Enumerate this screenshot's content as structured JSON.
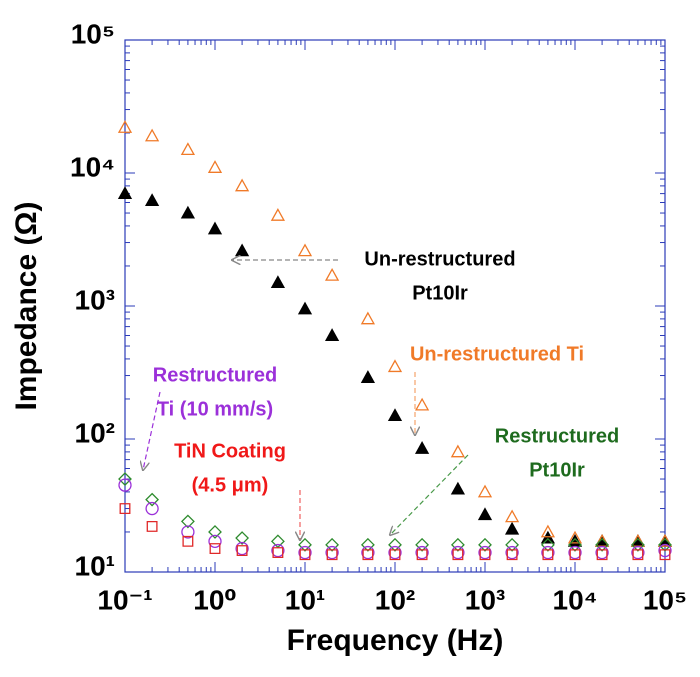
{
  "chart_data": {
    "type": "scatter",
    "x_label": "Frequency (Hz)",
    "y_label": "Impedance (Ω)",
    "log_x": true,
    "log_y": true,
    "xlim": [
      0.1,
      100000
    ],
    "ylim": [
      10,
      100000
    ],
    "xticks": [
      {
        "value": 0.1,
        "label": "10⁻¹"
      },
      {
        "value": 1,
        "label": "10⁰"
      },
      {
        "value": 10,
        "label": "10¹"
      },
      {
        "value": 100,
        "label": "10²"
      },
      {
        "value": 1000,
        "label": "10³"
      },
      {
        "value": 10000,
        "label": "10⁴"
      },
      {
        "value": 100000,
        "label": "10⁵"
      }
    ],
    "yticks": [
      {
        "value": 10,
        "label": "10¹"
      },
      {
        "value": 100,
        "label": "10²"
      },
      {
        "value": 1000,
        "label": "10³"
      },
      {
        "value": 10000,
        "label": "10⁴"
      },
      {
        "value": 100000,
        "label": "10⁵"
      }
    ],
    "x": [
      0.1,
      0.2,
      0.5,
      1,
      2,
      5,
      10,
      20,
      50,
      100,
      200,
      500,
      1000,
      2000,
      5000,
      10000,
      20000,
      50000,
      100000
    ],
    "series": [
      {
        "name": "Un-restructured Pt10Ir",
        "color": "#000000",
        "marker": "triangle-filled",
        "values": [
          7000,
          6200,
          5000,
          3800,
          2600,
          1500,
          950,
          600,
          290,
          150,
          85,
          42,
          27,
          21,
          18,
          17,
          17,
          17,
          17
        ]
      },
      {
        "name": "Un-restructured Ti",
        "color": "#f07a28",
        "marker": "triangle",
        "values": [
          22000,
          19000,
          15000,
          11000,
          8000,
          4800,
          2600,
          1700,
          800,
          350,
          180,
          80,
          40,
          26,
          20,
          18,
          17,
          17,
          17
        ]
      },
      {
        "name": "Restructured Pt10Ir",
        "color": "#2e8b2e",
        "marker": "diamond",
        "values": [
          50,
          35,
          24,
          20,
          18,
          17,
          16,
          16,
          16,
          16,
          16,
          16,
          16,
          16,
          16,
          16,
          16,
          16,
          16
        ]
      },
      {
        "name": "Restructured Ti (10 mm/s)",
        "color": "#9b30d9",
        "marker": "circle",
        "values": [
          45,
          30,
          20,
          17,
          15,
          14.5,
          14,
          14,
          14,
          14,
          14,
          14,
          14,
          14,
          14,
          14,
          14,
          14,
          14.5
        ]
      },
      {
        "name": "TiN Coating (4.5 μm)",
        "color": "#e02828",
        "marker": "square",
        "values": [
          30,
          22,
          17,
          15,
          14.5,
          14,
          13.5,
          13.5,
          13.5,
          13.5,
          13.5,
          13.5,
          13.5,
          13.5,
          13.5,
          13.5,
          13.5,
          13.5,
          13.5
        ]
      }
    ],
    "annotations": [
      {
        "lines": [
          "Un-restructured",
          "Pt10Ir"
        ],
        "color": "#000000"
      },
      {
        "lines": [
          "Un-restructured Ti"
        ],
        "color": "#f07a28"
      },
      {
        "lines": [
          "Restructured",
          "Pt10Ir"
        ],
        "color": "#1e6b1e"
      },
      {
        "lines": [
          "Restructured",
          "Ti (10 mm/s)"
        ],
        "color": "#9b30d9"
      },
      {
        "lines": [
          "TiN Coating",
          "(4.5 μm)"
        ],
        "color": "#f01818"
      }
    ]
  }
}
